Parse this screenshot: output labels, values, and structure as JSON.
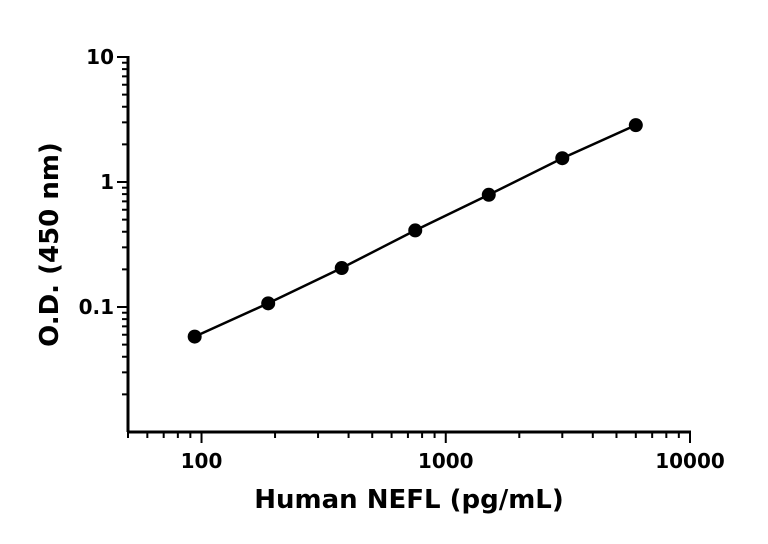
{
  "chart_data": {
    "type": "scatter",
    "title": "",
    "xlabel": "Human NEFL (pg/mL)",
    "ylabel": "O.D. (450 nm)",
    "xscale": "log",
    "yscale": "log",
    "xlim": [
      50,
      10000
    ],
    "ylim": [
      0.01,
      10
    ],
    "xticks": [
      "100",
      "1000",
      "10000"
    ],
    "yticks": [
      "0.1",
      "1",
      "10"
    ],
    "grid": false,
    "legend": "none",
    "series": [
      {
        "x": [
          93.75,
          187.5,
          375,
          750,
          1500,
          3000,
          6000
        ],
        "y": [
          0.058,
          0.107,
          0.205,
          0.41,
          0.79,
          1.55,
          2.85
        ],
        "marker": "circle",
        "line": "fitted curve",
        "color": "#000000"
      }
    ]
  }
}
